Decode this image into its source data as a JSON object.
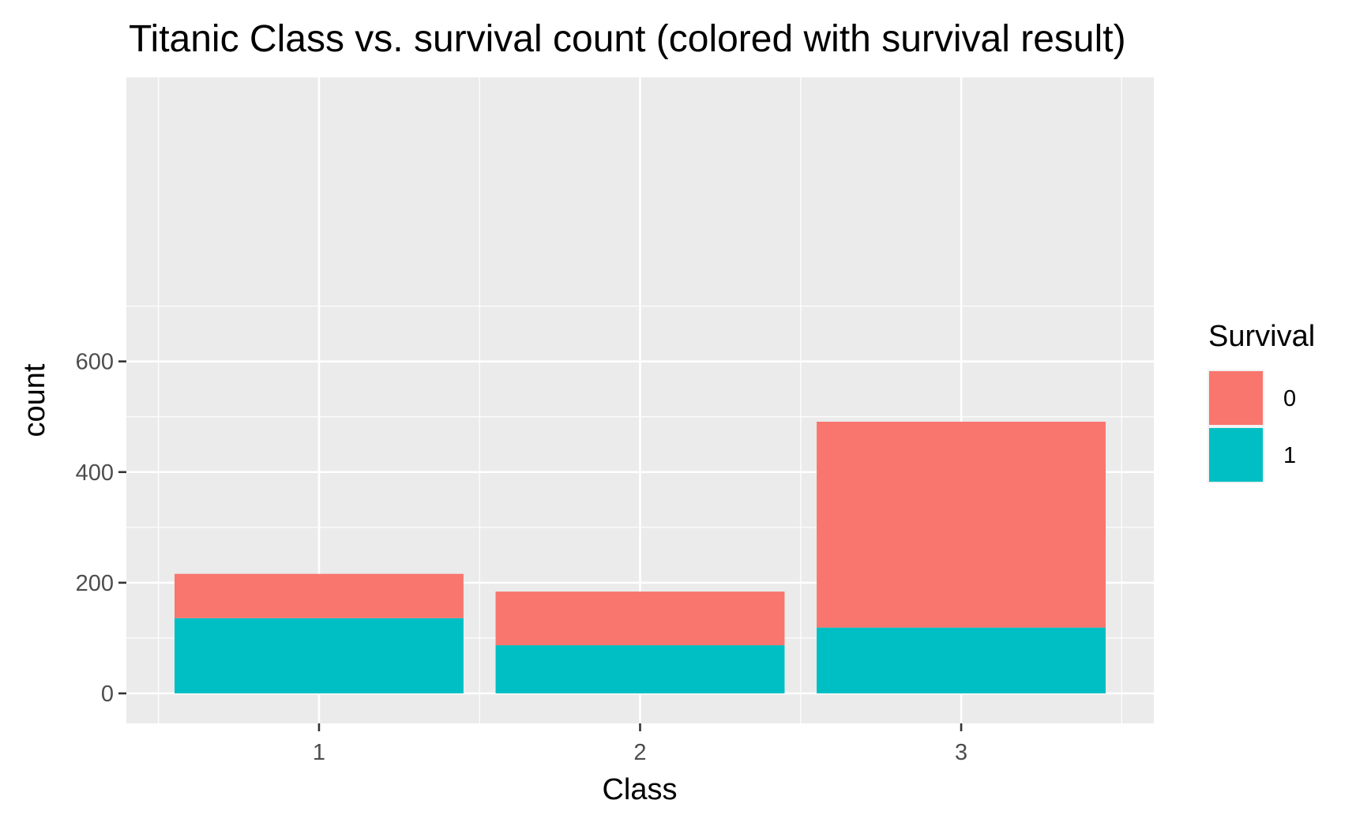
{
  "chart_data": {
    "type": "bar",
    "stacked": true,
    "title": "Titanic Class vs. survival count (colored with survival result)",
    "xlabel": "Class",
    "ylabel": "count",
    "categories": [
      "1",
      "2",
      "3"
    ],
    "series": [
      {
        "name": "1",
        "color": "#00BFC4",
        "values": [
          136,
          87,
          119
        ]
      },
      {
        "name": "0",
        "color": "#F8766D",
        "values": [
          80,
          97,
          372
        ]
      }
    ],
    "ylim": [
      0,
      800
    ],
    "yticks": [
      0,
      200,
      400,
      600
    ],
    "grid": true,
    "legend": {
      "title": "Survival",
      "position": "right",
      "entries": [
        {
          "label": "0",
          "color": "#F8766D"
        },
        {
          "label": "1",
          "color": "#00BFC4"
        }
      ]
    }
  }
}
